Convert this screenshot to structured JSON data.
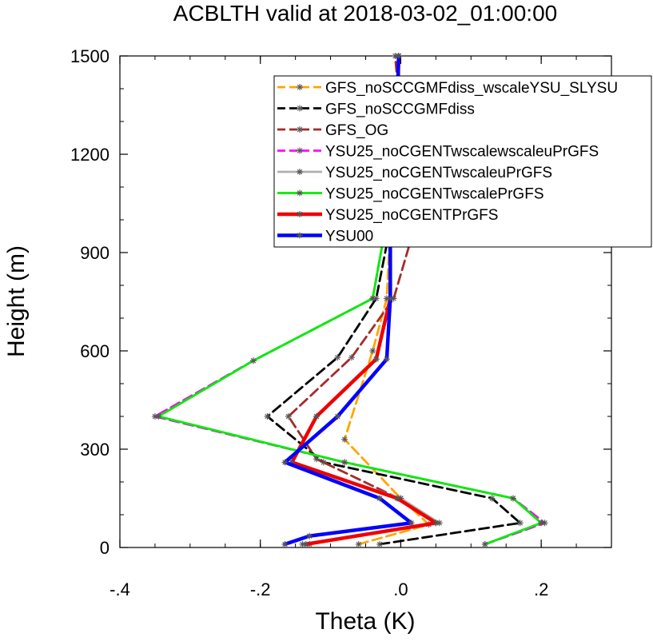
{
  "chart_data": {
    "type": "line",
    "title": "ACBLTH valid at 2018-03-02_01:00:00",
    "xlabel": "Theta (K)",
    "ylabel": "Height (m)",
    "xlim": [
      -0.4,
      0.3
    ],
    "ylim": [
      0,
      1500
    ],
    "x_ticks": [
      -0.4,
      -0.2,
      0.0,
      0.2
    ],
    "x_tick_labels": [
      "-.4",
      "-.2",
      ".0",
      ".2"
    ],
    "y_ticks": [
      0,
      300,
      600,
      900,
      1200,
      1500
    ],
    "y_tick_labels": [
      "0",
      "300",
      "600",
      "900",
      "1200",
      "1500"
    ],
    "grid": false,
    "legend_position": "top-right",
    "series": [
      {
        "name": "GFS_noSCCGMFdiss_wscaleYSU_SLYSU",
        "color": "#ffa500",
        "dash": "dashed",
        "width": "medium",
        "x": [
          -0.06,
          0.04,
          0.0,
          -0.08,
          -0.04,
          -0.02,
          -0.015,
          -0.01,
          -0.005,
          -0.003,
          -0.002,
          -0.003
        ],
        "y": [
          10,
          70,
          150,
          330,
          600,
          760,
          980,
          1040,
          1200,
          1300,
          1400,
          1500
        ]
      },
      {
        "name": "GFS_noSCCGMFdiss",
        "color": "#000000",
        "dash": "dashed",
        "width": "medium",
        "x": [
          -0.03,
          0.17,
          0.13,
          -0.11,
          -0.19,
          -0.09,
          -0.035,
          -0.015,
          -0.01,
          -0.005,
          -0.003
        ],
        "y": [
          10,
          75,
          150,
          260,
          400,
          580,
          760,
          980,
          1200,
          1350,
          1500
        ]
      },
      {
        "name": "GFS_OG",
        "color": "#a52a2a",
        "dash": "dashed",
        "width": "medium",
        "x": [
          -0.13,
          0.05,
          -0.003,
          -0.12,
          -0.16,
          -0.07,
          -0.01,
          0.02,
          0.005,
          -0.002,
          -0.008
        ],
        "y": [
          10,
          75,
          150,
          270,
          400,
          580,
          760,
          980,
          1200,
          1350,
          1500
        ]
      },
      {
        "name": "YSU25_noCGENTwscalewscaleuPrGFS",
        "color": "#ff00ff",
        "dash": "dashed",
        "width": "medium",
        "x": [
          0.12,
          0.205,
          0.16,
          -0.08,
          -0.35,
          -0.21,
          -0.04,
          -0.02,
          -0.01,
          -0.005,
          -0.003
        ],
        "y": [
          10,
          75,
          150,
          260,
          400,
          570,
          760,
          1000,
          1200,
          1350,
          1500
        ]
      },
      {
        "name": "YSU25_noCGENTwscaleuPrGFS",
        "color": "#b0b0b0",
        "dash": "solid",
        "width": "medium",
        "x": [
          -0.14,
          0.055,
          0.0,
          -0.155,
          -0.12,
          -0.035,
          -0.015,
          -0.015,
          -0.01,
          -0.005,
          -0.003
        ],
        "y": [
          10,
          75,
          150,
          260,
          400,
          575,
          760,
          1000,
          1200,
          1350,
          1500
        ]
      },
      {
        "name": "YSU25_noCGENTwscalePrGFS",
        "color": "#00ee00",
        "dash": "solid",
        "width": "medium",
        "x": [
          0.12,
          0.2,
          0.16,
          -0.08,
          -0.345,
          -0.21,
          -0.04,
          -0.02,
          -0.01,
          -0.005,
          -0.003
        ],
        "y": [
          10,
          75,
          150,
          260,
          400,
          570,
          760,
          1000,
          1200,
          1350,
          1500
        ]
      },
      {
        "name": "YSU25_noCGENTPrGFS",
        "color": "#ee0000",
        "dash": "solid",
        "width": "thick",
        "x": [
          -0.135,
          0.05,
          -0.005,
          -0.155,
          -0.12,
          -0.035,
          -0.015,
          -0.015,
          -0.01,
          -0.005,
          -0.003
        ],
        "y": [
          10,
          75,
          150,
          260,
          400,
          575,
          760,
          1000,
          1200,
          1350,
          1500
        ]
      },
      {
        "name": "YSU00",
        "color": "#0000ff",
        "dash": "solid",
        "width": "thick",
        "x": [
          -0.165,
          -0.13,
          0.015,
          -0.03,
          -0.165,
          -0.09,
          -0.02,
          -0.015,
          -0.015,
          -0.01,
          -0.005,
          -0.003
        ],
        "y": [
          10,
          35,
          75,
          150,
          260,
          400,
          575,
          760,
          1000,
          1200,
          1350,
          1500
        ]
      }
    ]
  }
}
